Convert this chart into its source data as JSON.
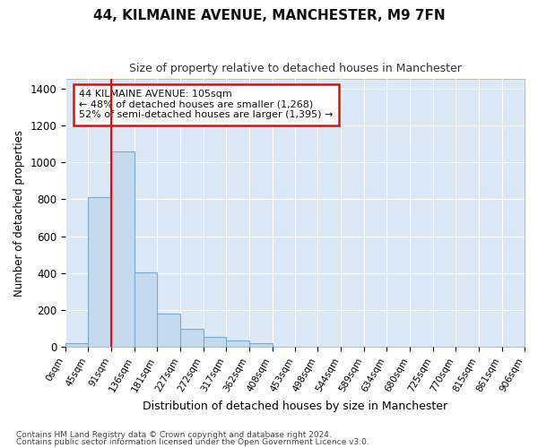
{
  "title": "44, KILMAINE AVENUE, MANCHESTER, M9 7FN",
  "subtitle": "Size of property relative to detached houses in Manchester",
  "xlabel": "Distribution of detached houses by size in Manchester",
  "ylabel": "Number of detached properties",
  "bar_color": "#c5d9ef",
  "bar_edge_color": "#7aadd4",
  "background_color": "#ffffff",
  "plot_bg_color": "#dce8f5",
  "grid_color": "#ffffff",
  "annotation_address": "44 KILMAINE AVENUE: 105sqm",
  "annotation_line1": "← 48% of detached houses are smaller (1,268)",
  "annotation_line2": "52% of semi-detached houses are larger (1,395) →",
  "red_line_x": 91,
  "bin_edges": [
    0,
    45,
    91,
    136,
    181,
    227,
    272,
    317,
    362,
    408,
    453,
    498,
    544,
    589,
    634,
    680,
    725,
    770,
    815,
    861,
    906
  ],
  "bar_heights": [
    22,
    810,
    1060,
    405,
    183,
    100,
    55,
    38,
    22,
    0,
    0,
    0,
    0,
    0,
    0,
    0,
    0,
    0,
    0,
    0
  ],
  "ylim": [
    0,
    1450
  ],
  "yticks": [
    0,
    200,
    400,
    600,
    800,
    1000,
    1200,
    1400
  ],
  "footnote1": "Contains HM Land Registry data © Crown copyright and database right 2024.",
  "footnote2": "Contains public sector information licensed under the Open Government Licence v3.0."
}
